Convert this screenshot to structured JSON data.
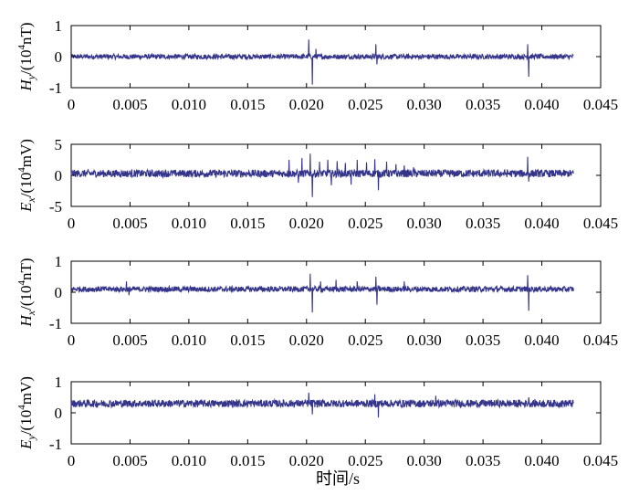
{
  "xlabel": "时间/s",
  "x_ticks": [
    "0",
    "0.005",
    "0.010",
    "0.015",
    "0.020",
    "0.025",
    "0.030",
    "0.035",
    "0.040",
    "0.045"
  ],
  "x_tick_values": [
    0,
    0.005,
    0.01,
    0.015,
    0.02,
    0.025,
    0.03,
    0.035,
    0.04,
    0.045
  ],
  "colors": {
    "signal": "#34348a",
    "axes": "#000000",
    "background": "#ffffff"
  },
  "panels": [
    {
      "id": "hy",
      "ylabel_main": "H",
      "ylabel_sub": "y",
      "ylabel_unit": "/(10",
      "ylabel_exp": "4",
      "ylabel_end": "nT)",
      "y_ticks": [
        "1",
        "0",
        "-1"
      ]
    },
    {
      "id": "ex",
      "ylabel_main": "E",
      "ylabel_sub": "x",
      "ylabel_unit": "/(10",
      "ylabel_exp": "4",
      "ylabel_end": "mV)",
      "y_ticks": [
        "5",
        "0",
        "-5"
      ]
    },
    {
      "id": "hx",
      "ylabel_main": "H",
      "ylabel_sub": "x",
      "ylabel_unit": "/(10",
      "ylabel_exp": "4",
      "ylabel_end": "nT)",
      "y_ticks": [
        "1",
        "0",
        "-1"
      ]
    },
    {
      "id": "ey",
      "ylabel_main": "E",
      "ylabel_sub": "y",
      "ylabel_unit": "/(10",
      "ylabel_exp": "4",
      "ylabel_end": "mV)",
      "y_ticks": [
        "1",
        "0",
        "-1"
      ]
    }
  ],
  "chart_data": [
    {
      "type": "line",
      "ylabel": "Hy/(10^4nT)",
      "xlabel": "",
      "xlim": [
        0,
        0.045
      ],
      "ylim": [
        -1,
        1
      ],
      "series": [
        {
          "baseline": 0.0,
          "noise_amplitude": 0.08,
          "x_end": 0.0427,
          "spikes": [
            {
              "x": 0.0202,
              "y": 0.55
            },
            {
              "x": 0.0205,
              "y": -0.9
            },
            {
              "x": 0.0208,
              "y": 0.25
            },
            {
              "x": 0.0259,
              "y": 0.4
            },
            {
              "x": 0.026,
              "y": -0.25
            },
            {
              "x": 0.0388,
              "y": 0.4
            },
            {
              "x": 0.0389,
              "y": -0.65
            }
          ]
        }
      ]
    },
    {
      "type": "line",
      "ylabel": "Ex/(10^4mV)",
      "xlabel": "",
      "xlim": [
        0,
        0.045
      ],
      "ylim": [
        -5,
        5
      ],
      "series": [
        {
          "baseline": 0.3,
          "noise_amplitude": 0.6,
          "x_end": 0.0427,
          "spikes": [
            {
              "x": 0.0185,
              "y": 2.5
            },
            {
              "x": 0.0193,
              "y": -1.2
            },
            {
              "x": 0.0196,
              "y": 2.8
            },
            {
              "x": 0.0203,
              "y": 3.5
            },
            {
              "x": 0.0205,
              "y": -3.5
            },
            {
              "x": 0.0211,
              "y": 2.2
            },
            {
              "x": 0.0218,
              "y": 2.5
            },
            {
              "x": 0.0221,
              "y": -1.6
            },
            {
              "x": 0.0226,
              "y": 2.3
            },
            {
              "x": 0.0233,
              "y": 2.0
            },
            {
              "x": 0.0238,
              "y": -1.5
            },
            {
              "x": 0.0243,
              "y": 2.5
            },
            {
              "x": 0.0251,
              "y": 2.1
            },
            {
              "x": 0.0258,
              "y": 2.6
            },
            {
              "x": 0.0261,
              "y": -2.4
            },
            {
              "x": 0.0268,
              "y": 2.2
            },
            {
              "x": 0.0276,
              "y": 1.8
            },
            {
              "x": 0.0283,
              "y": 1.6
            },
            {
              "x": 0.0291,
              "y": 1.3
            },
            {
              "x": 0.0388,
              "y": 3.0
            },
            {
              "x": 0.0389,
              "y": -1.0
            }
          ]
        }
      ]
    },
    {
      "type": "line",
      "ylabel": "Hx/(10^4nT)",
      "xlabel": "",
      "xlim": [
        0,
        0.045
      ],
      "ylim": [
        -1,
        1
      ],
      "series": [
        {
          "baseline": 0.1,
          "noise_amplitude": 0.09,
          "x_end": 0.0427,
          "spikes": [
            {
              "x": 0.0047,
              "y": 0.35
            },
            {
              "x": 0.0049,
              "y": -0.1
            },
            {
              "x": 0.0203,
              "y": 0.6
            },
            {
              "x": 0.0205,
              "y": -0.65
            },
            {
              "x": 0.0212,
              "y": 0.35
            },
            {
              "x": 0.0225,
              "y": 0.4
            },
            {
              "x": 0.0243,
              "y": 0.35
            },
            {
              "x": 0.0259,
              "y": 0.5
            },
            {
              "x": 0.026,
              "y": -0.4
            },
            {
              "x": 0.0283,
              "y": 0.35
            },
            {
              "x": 0.0388,
              "y": 0.55
            },
            {
              "x": 0.0389,
              "y": -0.6
            }
          ]
        }
      ]
    },
    {
      "type": "line",
      "ylabel": "Ey/(10^4mV)",
      "xlabel": "时间/s",
      "xlim": [
        0,
        0.045
      ],
      "ylim": [
        -1,
        1
      ],
      "series": [
        {
          "baseline": 0.3,
          "noise_amplitude": 0.12,
          "x_end": 0.0427,
          "spikes": [
            {
              "x": 0.0202,
              "y": 0.65
            },
            {
              "x": 0.0205,
              "y": -0.05
            },
            {
              "x": 0.0258,
              "y": 0.6
            },
            {
              "x": 0.0261,
              "y": -0.15
            },
            {
              "x": 0.031,
              "y": 0.55
            },
            {
              "x": 0.0389,
              "y": 0.5
            }
          ]
        }
      ]
    }
  ]
}
